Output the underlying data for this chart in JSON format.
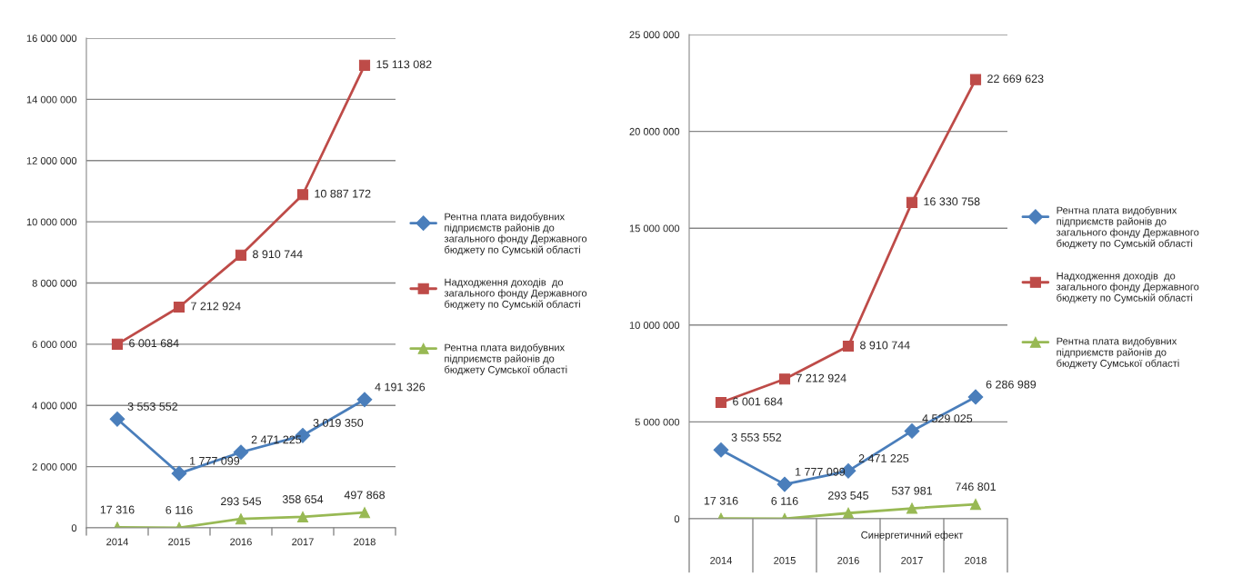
{
  "chart_data": [
    {
      "type": "line",
      "categories": [
        "2014",
        "2015",
        "2016",
        "2017",
        "2018"
      ],
      "ylim": [
        0,
        16000000
      ],
      "yticks": [
        {
          "value": 0,
          "label": "0"
        },
        {
          "value": 2000000,
          "label": "2 000 000"
        },
        {
          "value": 4000000,
          "label": "4 000 000"
        },
        {
          "value": 6000000,
          "label": "6 000 000"
        },
        {
          "value": 8000000,
          "label": "8 000 000"
        },
        {
          "value": 10000000,
          "label": "10 000 000"
        },
        {
          "value": 12000000,
          "label": "12 000 000"
        },
        {
          "value": 14000000,
          "label": "14 000 000"
        },
        {
          "value": 16000000,
          "label": "16 000 000"
        }
      ],
      "grid": "y",
      "legend": "right",
      "series": [
        {
          "name": "Рентна плата видобувних підприємств районів до загального фонду Державного бюджету по Сумській області",
          "color": "#4a7ebb",
          "marker": "diamond",
          "values": [
            3553552,
            1777099,
            2471225,
            3019350,
            4191326
          ],
          "value_labels": [
            "3 553 552",
            "1 777 099",
            "2 471 225",
            "3 019 350",
            "4 191 326"
          ]
        },
        {
          "name": "Надходження доходів  до загального фонду Державного бюджету по Сумській області",
          "color": "#be4b48",
          "marker": "square",
          "values": [
            6001684,
            7212924,
            8910744,
            10887172,
            15113082
          ],
          "value_labels": [
            "6 001 684",
            "7 212 924",
            "8 910 744",
            "10 887 172",
            "15 113 082"
          ]
        },
        {
          "name": "Рентна плата видобувних підприємств районів до бюджету Сумської області",
          "color": "#98b954",
          "marker": "triangle",
          "values": [
            17316,
            6116,
            293545,
            358654,
            497868
          ],
          "value_labels": [
            "17 316",
            "6 116",
            "293 545",
            "358 654",
            "497 868"
          ]
        }
      ]
    },
    {
      "type": "line",
      "categories": [
        "2014",
        "2015",
        "2016",
        "2017",
        "2018"
      ],
      "ylim": [
        0,
        25000000
      ],
      "yticks": [
        {
          "value": 0,
          "label": "0"
        },
        {
          "value": 5000000,
          "label": "5 000 000"
        },
        {
          "value": 10000000,
          "label": "10 000 000"
        },
        {
          "value": 15000000,
          "label": "15 000 000"
        },
        {
          "value": 20000000,
          "label": "20 000 000"
        },
        {
          "value": 25000000,
          "label": "25 000 000"
        }
      ],
      "grid": "y",
      "legend": "right",
      "annotations": [
        "Синергетичний ефект"
      ],
      "series": [
        {
          "name": "Рентна плата видобувних підприємств районів до загального фонду Державного бюджету по Сумській області",
          "color": "#4a7ebb",
          "marker": "diamond",
          "values": [
            3553552,
            1777099,
            2471225,
            4529025,
            6286989
          ],
          "value_labels": [
            "3 553 552",
            "1 777 099",
            "2 471 225",
            "4 529 025",
            "6 286 989"
          ]
        },
        {
          "name": "Надходження доходів  до загального фонду Державного бюджету по Сумській області",
          "color": "#be4b48",
          "marker": "square",
          "values": [
            6001684,
            7212924,
            8910744,
            16330758,
            22669623
          ],
          "value_labels": [
            "6 001 684",
            "7 212 924",
            "8 910 744",
            "16 330 758",
            "22 669 623"
          ]
        },
        {
          "name": "Рентна плата видобувних підприємств районів до бюджету Сумської області",
          "color": "#98b954",
          "marker": "triangle",
          "values": [
            17316,
            6116,
            293545,
            537981,
            746801
          ],
          "value_labels": [
            "17 316",
            "6 116",
            "293 545",
            "537 981",
            "746 801"
          ]
        }
      ]
    }
  ]
}
